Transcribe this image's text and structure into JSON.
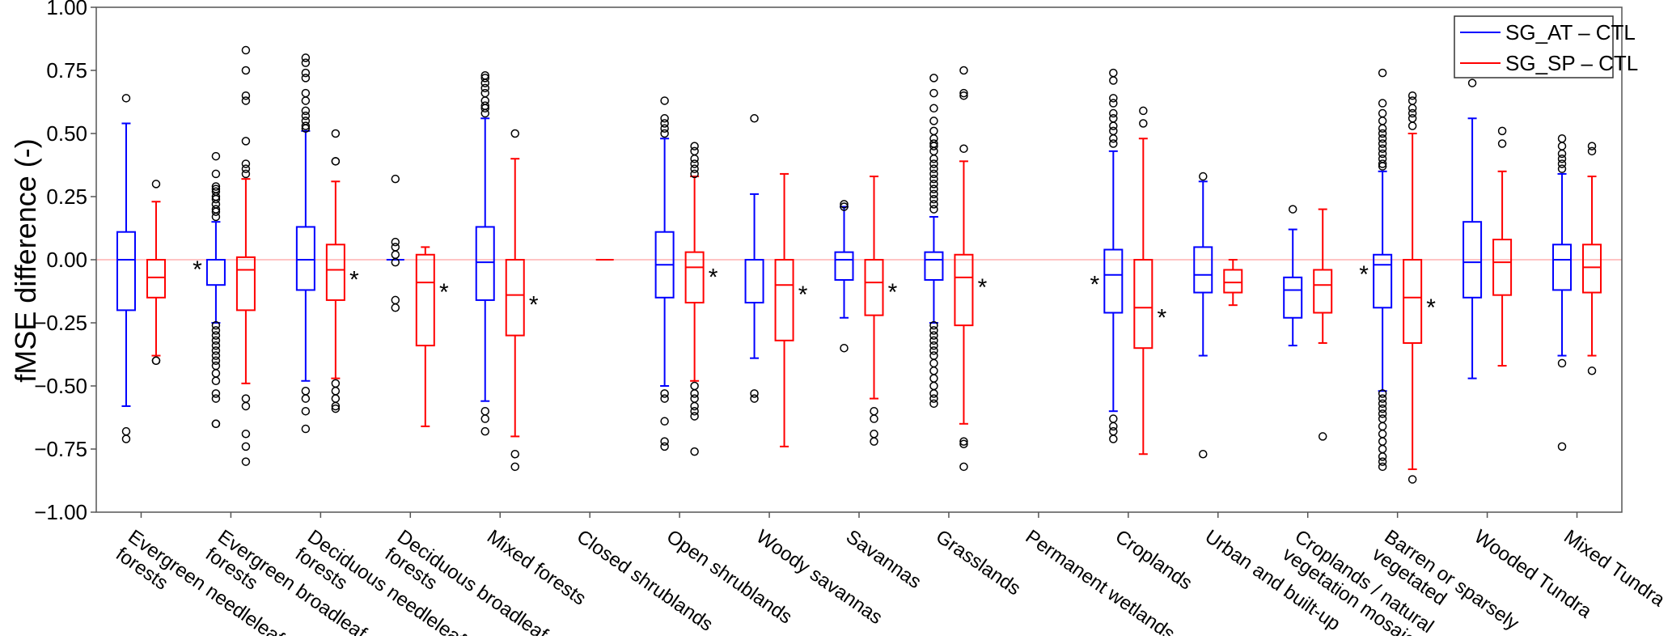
{
  "chart_data": {
    "type": "box",
    "title": "",
    "xlabel": "",
    "ylabel": "fMSE difference (-)",
    "ylim": [
      -1.0,
      1.0
    ],
    "yticks": [
      1.0,
      0.75,
      0.5,
      0.25,
      0.0,
      -0.25,
      -0.5,
      -0.75,
      -1.0
    ],
    "ytick_labels": [
      "1.00",
      "0.75",
      "0.50",
      "0.25",
      "0.00",
      "−0.25",
      "−0.50",
      "−0.75",
      "−1.00"
    ],
    "reference_line": {
      "y": 0.0,
      "color": "#ffb0b0"
    },
    "legend_position": "top-right",
    "significance_marker": "*",
    "categories": [
      [
        "Evergreen needleleaf",
        "forests"
      ],
      [
        "Evergreen broadleaf",
        "forests"
      ],
      [
        "Deciduous needleleaf",
        "forests"
      ],
      [
        "Deciduous broadleaf",
        "forests"
      ],
      [
        "Mixed forests"
      ],
      [
        "Closed shrublands"
      ],
      [
        "Open shrublands"
      ],
      [
        "Woody savannas"
      ],
      [
        "Savannas"
      ],
      [
        "Grasslands"
      ],
      [
        "Permanent wetlands"
      ],
      [
        "Croplands"
      ],
      [
        "Urban and built-up"
      ],
      [
        "Croplands / natural",
        "vegetation mosaic"
      ],
      [
        "Barren or sparsely",
        "vegetated"
      ],
      [
        "Wooded Tundra"
      ],
      [
        "Mixed Tundra"
      ]
    ],
    "series": [
      {
        "name": "SG_AT – CTL",
        "color": "#0000ff",
        "boxes": [
          {
            "whislo": -0.58,
            "q1": -0.2,
            "med": 0.0,
            "q3": 0.11,
            "whishi": 0.54,
            "fliers": [
              0.64,
              -0.68,
              -0.71
            ],
            "sig": false
          },
          {
            "whislo": -0.25,
            "q1": -0.1,
            "med": 0.0,
            "q3": 0.0,
            "whishi": 0.15,
            "fliers": [
              0.41,
              0.34,
              0.29,
              0.28,
              0.27,
              0.25,
              0.24,
              0.22,
              0.2,
              0.19,
              0.17,
              -0.26,
              -0.28,
              -0.3,
              -0.32,
              -0.34,
              -0.36,
              -0.38,
              -0.4,
              -0.42,
              -0.45,
              -0.48,
              -0.53,
              -0.55,
              -0.65,
              -0.65
            ],
            "sig": true
          },
          {
            "whislo": -0.48,
            "q1": -0.12,
            "med": 0.0,
            "q3": 0.13,
            "whishi": 0.51,
            "fliers": [
              0.8,
              0.78,
              0.74,
              0.72,
              0.66,
              0.63,
              0.59,
              0.57,
              0.55,
              0.53,
              0.52,
              -0.52,
              -0.55,
              -0.6,
              -0.67
            ],
            "sig": false
          },
          {
            "whislo": 0.0,
            "q1": 0.0,
            "med": 0.0,
            "q3": 0.0,
            "whishi": 0.0,
            "fliers": [
              0.32,
              0.07,
              0.05,
              0.02,
              -0.01,
              -0.16,
              -0.19
            ],
            "sig": false
          },
          {
            "whislo": -0.56,
            "q1": -0.16,
            "med": -0.01,
            "q3": 0.13,
            "whishi": 0.56,
            "fliers": [
              0.73,
              0.72,
              0.7,
              0.68,
              0.66,
              0.63,
              0.61,
              0.6,
              0.58,
              -0.6,
              -0.63,
              -0.68
            ],
            "sig": false
          },
          null,
          {
            "whislo": -0.5,
            "q1": -0.15,
            "med": -0.02,
            "q3": 0.11,
            "whishi": 0.48,
            "fliers": [
              0.63,
              0.56,
              0.54,
              0.52,
              0.5,
              -0.53,
              -0.55,
              -0.64,
              -0.72,
              -0.74
            ],
            "sig": false
          },
          {
            "whislo": -0.39,
            "q1": -0.17,
            "med": 0.0,
            "q3": 0.0,
            "whishi": 0.26,
            "fliers": [
              0.56,
              -0.53,
              -0.55
            ],
            "sig": false
          },
          {
            "whislo": -0.23,
            "q1": -0.08,
            "med": 0.0,
            "q3": 0.03,
            "whishi": 0.21,
            "fliers": [
              0.22,
              0.21,
              -0.35
            ],
            "sig": false
          },
          {
            "whislo": -0.25,
            "q1": -0.08,
            "med": 0.0,
            "q3": 0.03,
            "whishi": 0.17,
            "fliers": [
              0.72,
              0.66,
              0.6,
              0.55,
              0.51,
              0.48,
              0.46,
              0.45,
              0.43,
              0.4,
              0.38,
              0.36,
              0.34,
              0.32,
              0.3,
              0.28,
              0.26,
              0.24,
              0.22,
              0.2,
              -0.26,
              -0.28,
              -0.3,
              -0.32,
              -0.34,
              -0.36,
              -0.38,
              -0.41,
              -0.44,
              -0.47,
              -0.5,
              -0.53,
              -0.55,
              -0.57
            ],
            "sig": false
          },
          null,
          {
            "whislo": -0.6,
            "q1": -0.21,
            "med": -0.06,
            "q3": 0.04,
            "whishi": 0.43,
            "fliers": [
              0.74,
              0.71,
              0.64,
              0.62,
              0.58,
              0.56,
              0.53,
              0.51,
              0.48,
              0.46,
              -0.63,
              -0.66,
              -0.68,
              -0.71
            ],
            "sig": true
          },
          {
            "whislo": -0.38,
            "q1": -0.13,
            "med": -0.06,
            "q3": 0.05,
            "whishi": 0.31,
            "fliers": [
              0.33,
              -0.77
            ],
            "sig": false
          },
          {
            "whislo": -0.34,
            "q1": -0.23,
            "med": -0.12,
            "q3": -0.07,
            "whishi": 0.12,
            "fliers": [
              0.2
            ],
            "sig": false
          },
          {
            "whislo": -0.52,
            "q1": -0.19,
            "med": -0.02,
            "q3": 0.02,
            "whishi": 0.35,
            "fliers": [
              0.74,
              0.62,
              0.58,
              0.55,
              0.52,
              0.5,
              0.48,
              0.46,
              0.44,
              0.42,
              0.4,
              0.38,
              0.37,
              -0.53,
              -0.55,
              -0.57,
              -0.59,
              -0.61,
              -0.63,
              -0.66,
              -0.69,
              -0.72,
              -0.75,
              -0.78,
              -0.8,
              -0.82
            ],
            "sig": true
          },
          {
            "whislo": -0.47,
            "q1": -0.15,
            "med": -0.01,
            "q3": 0.15,
            "whishi": 0.56,
            "fliers": [
              0.7
            ],
            "sig": false
          },
          {
            "whislo": -0.38,
            "q1": -0.12,
            "med": 0.0,
            "q3": 0.06,
            "whishi": 0.34,
            "fliers": [
              0.48,
              0.45,
              0.42,
              0.4,
              0.38,
              0.36,
              -0.41,
              -0.74
            ],
            "sig": false
          }
        ]
      },
      {
        "name": "SG_SP – CTL",
        "color": "#ff0000",
        "boxes": [
          {
            "whislo": -0.38,
            "q1": -0.15,
            "med": -0.07,
            "q3": 0.0,
            "whishi": 0.23,
            "fliers": [
              0.3,
              -0.4,
              -0.4
            ],
            "sig": false
          },
          {
            "whislo": -0.49,
            "q1": -0.2,
            "med": -0.04,
            "q3": 0.01,
            "whishi": 0.32,
            "fliers": [
              0.83,
              0.75,
              0.65,
              0.63,
              0.47,
              0.38,
              0.36,
              0.34,
              -0.55,
              -0.58,
              -0.69,
              -0.74,
              -0.8
            ],
            "sig": false
          },
          {
            "whislo": -0.47,
            "q1": -0.16,
            "med": -0.04,
            "q3": 0.06,
            "whishi": 0.31,
            "fliers": [
              0.5,
              0.39,
              0.39,
              -0.49,
              -0.52,
              -0.55,
              -0.58,
              -0.59
            ],
            "sig": true
          },
          {
            "whislo": -0.66,
            "q1": -0.34,
            "med": -0.09,
            "q3": 0.02,
            "whishi": 0.05,
            "fliers": [],
            "sig": true
          },
          {
            "whislo": -0.7,
            "q1": -0.3,
            "med": -0.14,
            "q3": 0.0,
            "whishi": 0.4,
            "fliers": [
              0.5,
              -0.77,
              -0.82
            ],
            "sig": true
          },
          {
            "whislo": 0.0,
            "q1": 0.0,
            "med": 0.0,
            "q3": 0.0,
            "whishi": 0.0,
            "fliers": [],
            "sig": false
          },
          {
            "whislo": -0.48,
            "q1": -0.17,
            "med": -0.03,
            "q3": 0.03,
            "whishi": 0.33,
            "fliers": [
              0.45,
              0.43,
              0.4,
              0.38,
              0.36,
              0.34,
              -0.5,
              -0.53,
              -0.55,
              -0.58,
              -0.6,
              -0.62,
              -0.76
            ],
            "sig": true
          },
          {
            "whislo": -0.74,
            "q1": -0.32,
            "med": -0.1,
            "q3": 0.0,
            "whishi": 0.34,
            "fliers": [],
            "sig": true
          },
          {
            "whislo": -0.55,
            "q1": -0.22,
            "med": -0.09,
            "q3": 0.0,
            "whishi": 0.33,
            "fliers": [
              -0.6,
              -0.63,
              -0.69,
              -0.72
            ],
            "sig": true
          },
          {
            "whislo": -0.65,
            "q1": -0.26,
            "med": -0.07,
            "q3": 0.02,
            "whishi": 0.39,
            "fliers": [
              0.75,
              0.66,
              0.65,
              0.44,
              -0.72,
              -0.73,
              -0.82
            ],
            "sig": true
          },
          null,
          {
            "whislo": -0.77,
            "q1": -0.35,
            "med": -0.19,
            "q3": 0.0,
            "whishi": 0.48,
            "fliers": [
              0.59,
              0.54
            ],
            "sig": true
          },
          {
            "whislo": -0.18,
            "q1": -0.13,
            "med": -0.09,
            "q3": -0.04,
            "whishi": 0.0,
            "fliers": [],
            "sig": false
          },
          {
            "whislo": -0.33,
            "q1": -0.21,
            "med": -0.1,
            "q3": -0.04,
            "whishi": 0.2,
            "fliers": [
              -0.7
            ],
            "sig": false
          },
          {
            "whislo": -0.83,
            "q1": -0.33,
            "med": -0.15,
            "q3": 0.0,
            "whishi": 0.5,
            "fliers": [
              0.65,
              0.63,
              0.6,
              0.58,
              0.56,
              0.53,
              -0.87
            ],
            "sig": true
          },
          {
            "whislo": -0.42,
            "q1": -0.14,
            "med": -0.01,
            "q3": 0.08,
            "whishi": 0.35,
            "fliers": [
              0.51,
              0.46
            ],
            "sig": false
          },
          {
            "whislo": -0.38,
            "q1": -0.13,
            "med": -0.03,
            "q3": 0.06,
            "whishi": 0.33,
            "fliers": [
              0.45,
              0.43,
              -0.44
            ],
            "sig": false
          }
        ]
      }
    ]
  }
}
